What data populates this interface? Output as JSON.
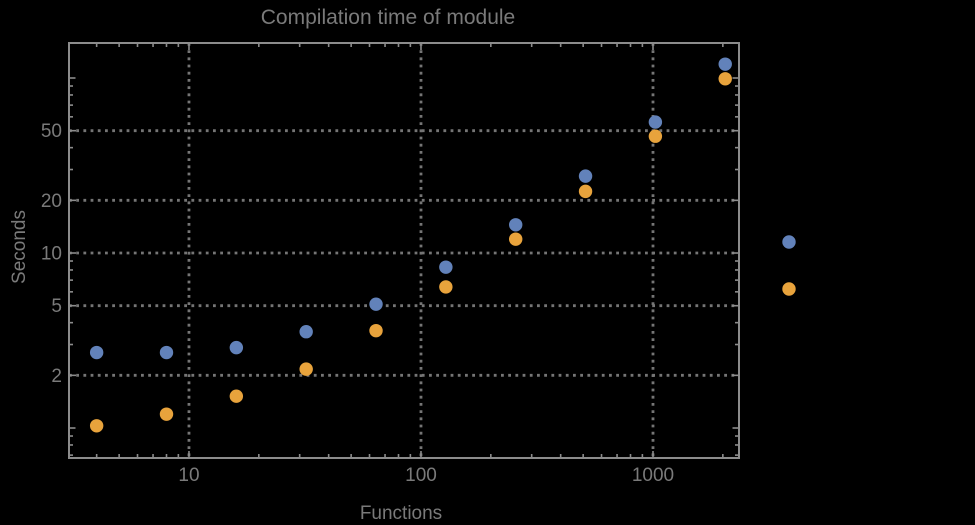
{
  "page": {
    "background": "#000000"
  },
  "chart_data": {
    "type": "scatter",
    "title": "Compilation time of module",
    "xlabel": "Functions",
    "ylabel": "Seconds",
    "x_scale": "log",
    "y_scale": "log",
    "xlim": [
      3.04,
      2348
    ],
    "ylim": [
      0.674,
      158.5
    ],
    "x_tick_values": [
      10,
      100,
      1000
    ],
    "x_tick_labels": [
      "10",
      "100",
      "1000"
    ],
    "y_tick_values": [
      2,
      5,
      10,
      20,
      50
    ],
    "y_tick_labels": [
      "2",
      "5",
      "10",
      "20",
      "50"
    ],
    "grid": {
      "style": "dotted",
      "color": "#757575",
      "at_x": [
        10,
        100,
        1000
      ],
      "at_y": [
        2,
        5,
        10,
        20,
        50
      ]
    },
    "x": [
      4,
      8,
      16,
      32,
      64,
      128,
      256,
      512,
      1024,
      2048
    ],
    "series": [
      {
        "name": "series-1-blue",
        "color": "#6282ba",
        "values": [
          2.7,
          2.7,
          2.88,
          3.55,
          5.1,
          8.3,
          14.5,
          27.5,
          56,
          120
        ]
      },
      {
        "name": "series-2-orange",
        "color": "#e8a33c",
        "values": [
          1.03,
          1.2,
          1.52,
          2.17,
          3.6,
          6.4,
          12,
          22.5,
          46.5,
          99
        ]
      }
    ],
    "legend": {
      "position": "right-outside",
      "entries": [
        {
          "label": "",
          "color": "#6282ba"
        },
        {
          "label": "",
          "color": "#e8a33c"
        }
      ]
    },
    "frame_color": "#8c8c8c",
    "text_color": "#7a7a7a",
    "marker_diameter_px": 13.4
  }
}
